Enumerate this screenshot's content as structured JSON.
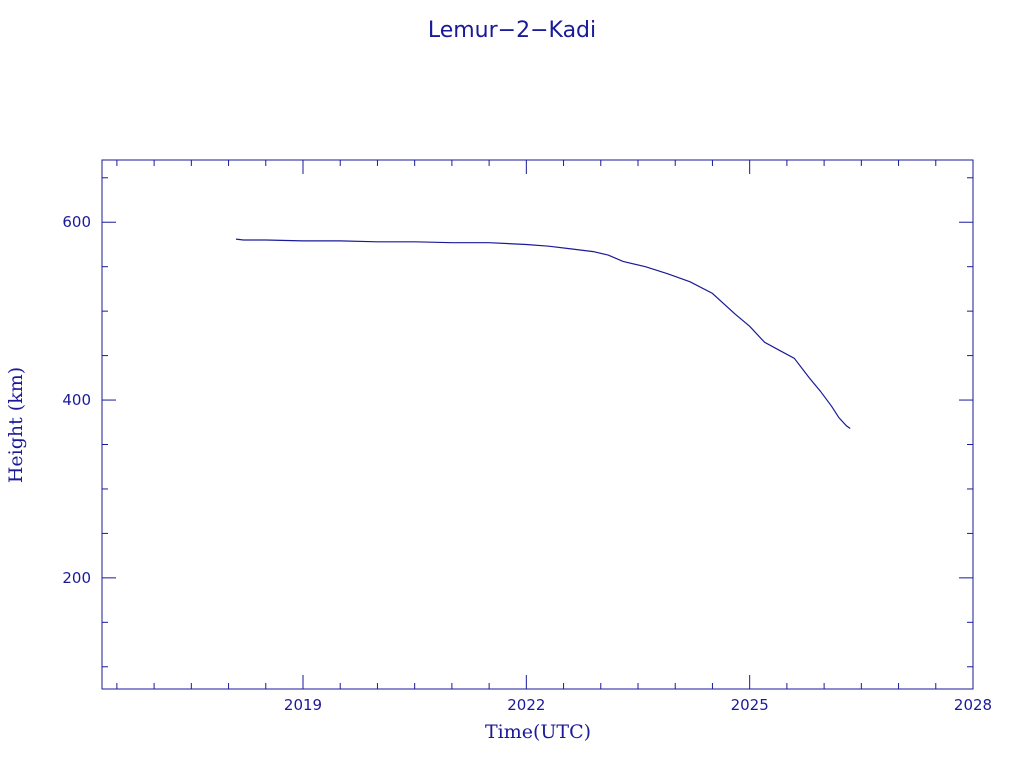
{
  "chart_data": {
    "type": "line",
    "title": "Lemur−2−Kadi",
    "xlabel": "Time(UTC)",
    "ylabel": "Height (km)",
    "xlim": [
      2016.3,
      2028.0
    ],
    "ylim": [
      75,
      670
    ],
    "x_ticks": [
      2019,
      2022,
      2025,
      2028
    ],
    "x_tick_labels": [
      "2019",
      "2022",
      "2025",
      "2028"
    ],
    "x_minor_ticks": [
      2016.5,
      2017.0,
      2017.5,
      2018.0,
      2018.5,
      2019.5,
      2020.0,
      2020.5,
      2021.0,
      2021.5,
      2022.5,
      2023.0,
      2023.5,
      2024.0,
      2024.5,
      2025.5,
      2026.0,
      2026.5,
      2027.0,
      2027.5
    ],
    "y_ticks": [
      200,
      400,
      600
    ],
    "y_tick_labels": [
      "200",
      "400",
      "600"
    ],
    "y_minor_ticks": [
      100,
      150,
      250,
      300,
      350,
      450,
      500,
      550,
      650
    ],
    "grid": false,
    "colors": {
      "ink": "#1a1a99"
    },
    "series": [
      {
        "x": [
          2018.1,
          2018.2,
          2018.5,
          2019.0,
          2019.5,
          2020.0,
          2020.5,
          2021.0,
          2021.5,
          2022.0,
          2022.3,
          2022.6,
          2022.9,
          2023.1,
          2023.3,
          2023.6,
          2023.9,
          2024.2,
          2024.5,
          2024.8,
          2025.0,
          2025.2,
          2025.4,
          2025.6,
          2025.8,
          2025.95,
          2026.1,
          2026.2,
          2026.3,
          2026.35
        ],
        "y": [
          581,
          580,
          580,
          579,
          579,
          578,
          578,
          577,
          577,
          575,
          573,
          570,
          567,
          563,
          556,
          550,
          542,
          533,
          520,
          497,
          483,
          465,
          456,
          447,
          425,
          410,
          393,
          380,
          371,
          368
        ]
      }
    ]
  }
}
